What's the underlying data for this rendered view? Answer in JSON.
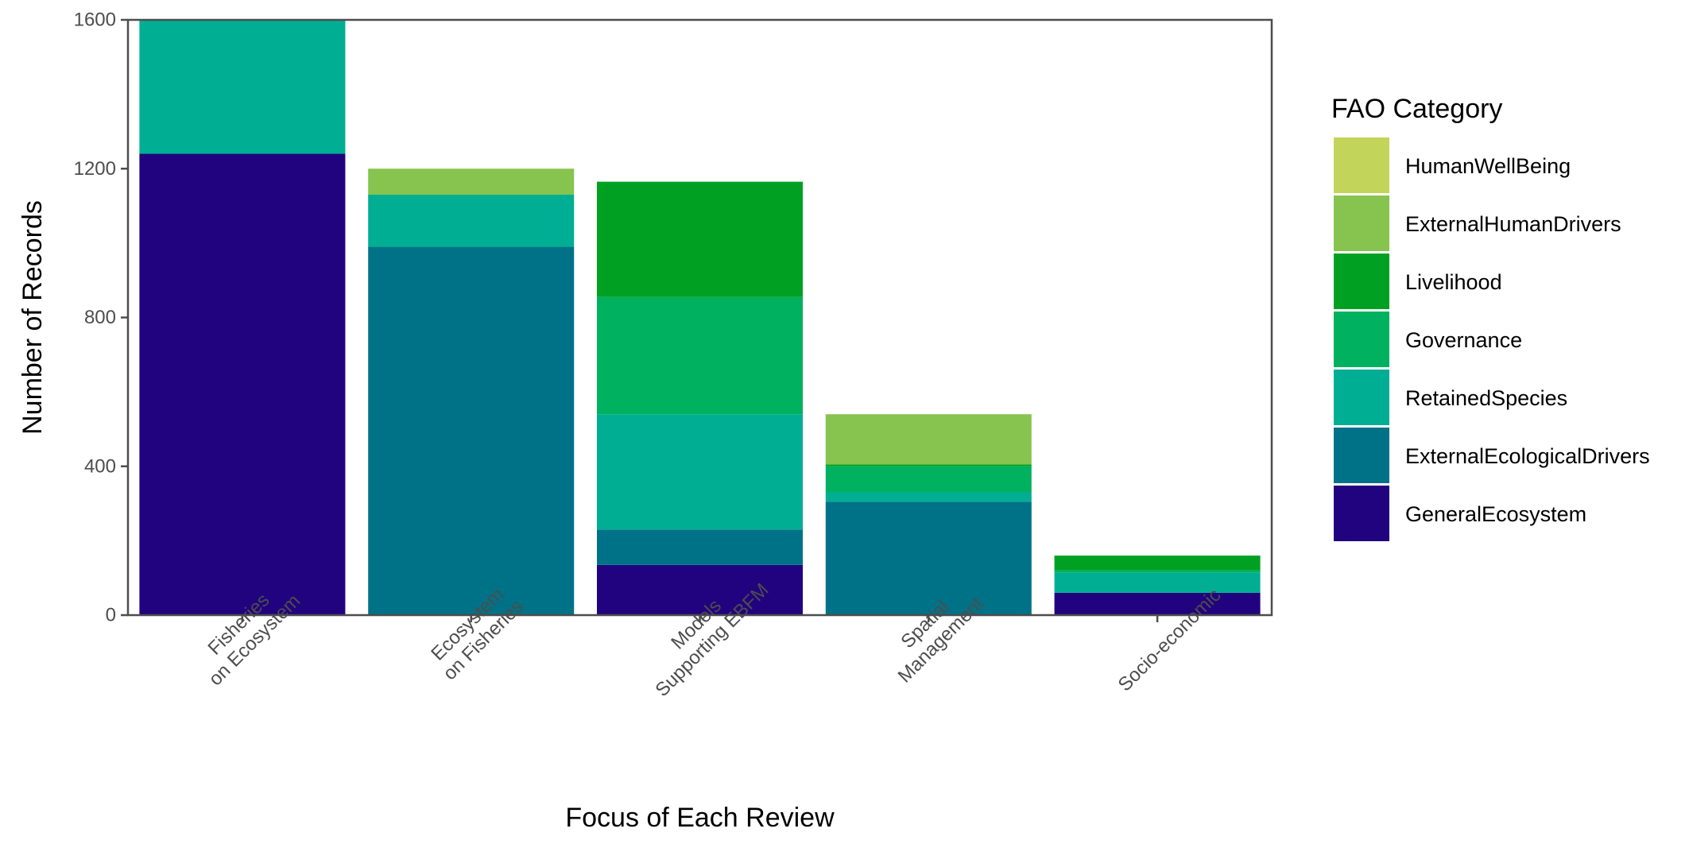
{
  "chart_data": {
    "type": "bar",
    "stacked": true,
    "title": "",
    "xlabel": "Focus of Each Review",
    "ylabel": "Number of Records",
    "ylim": [
      0,
      1600
    ],
    "yticks": [
      0,
      400,
      800,
      1200,
      1600
    ],
    "grid": false,
    "categories": [
      [
        "Fisheries",
        "on Ecosystem"
      ],
      [
        "Ecosystem",
        "on Fisheries"
      ],
      [
        "Models",
        "Supporting EBFM"
      ],
      [
        "Spatial",
        "Management"
      ],
      [
        "Socio-economic"
      ]
    ],
    "legend": {
      "title": "FAO Category",
      "placement": "right",
      "order": [
        "HumanWellBeing",
        "ExternalHumanDrivers",
        "Livelihood",
        "Governance",
        "RetainedSpecies",
        "ExternalEcologicalDrivers",
        "GeneralEcosystem"
      ]
    },
    "series": [
      {
        "name": "GeneralEcosystem",
        "color": "#22037f",
        "values": [
          1240,
          0,
          135,
          0,
          60
        ]
      },
      {
        "name": "ExternalEcologicalDrivers",
        "color": "#007287",
        "values": [
          0,
          990,
          95,
          305,
          0
        ]
      },
      {
        "name": "RetainedSpecies",
        "color": "#00ae93",
        "values": [
          360,
          140,
          310,
          25,
          55
        ]
      },
      {
        "name": "Governance",
        "color": "#00b15f",
        "values": [
          0,
          0,
          315,
          70,
          5
        ]
      },
      {
        "name": "Livelihood",
        "color": "#00a123",
        "values": [
          0,
          0,
          310,
          5,
          40
        ]
      },
      {
        "name": "ExternalHumanDrivers",
        "color": "#86c44f",
        "values": [
          0,
          70,
          0,
          135,
          0
        ]
      },
      {
        "name": "HumanWellBeing",
        "color": "#c2d55a",
        "values": [
          0,
          0,
          0,
          0,
          0
        ]
      }
    ]
  }
}
